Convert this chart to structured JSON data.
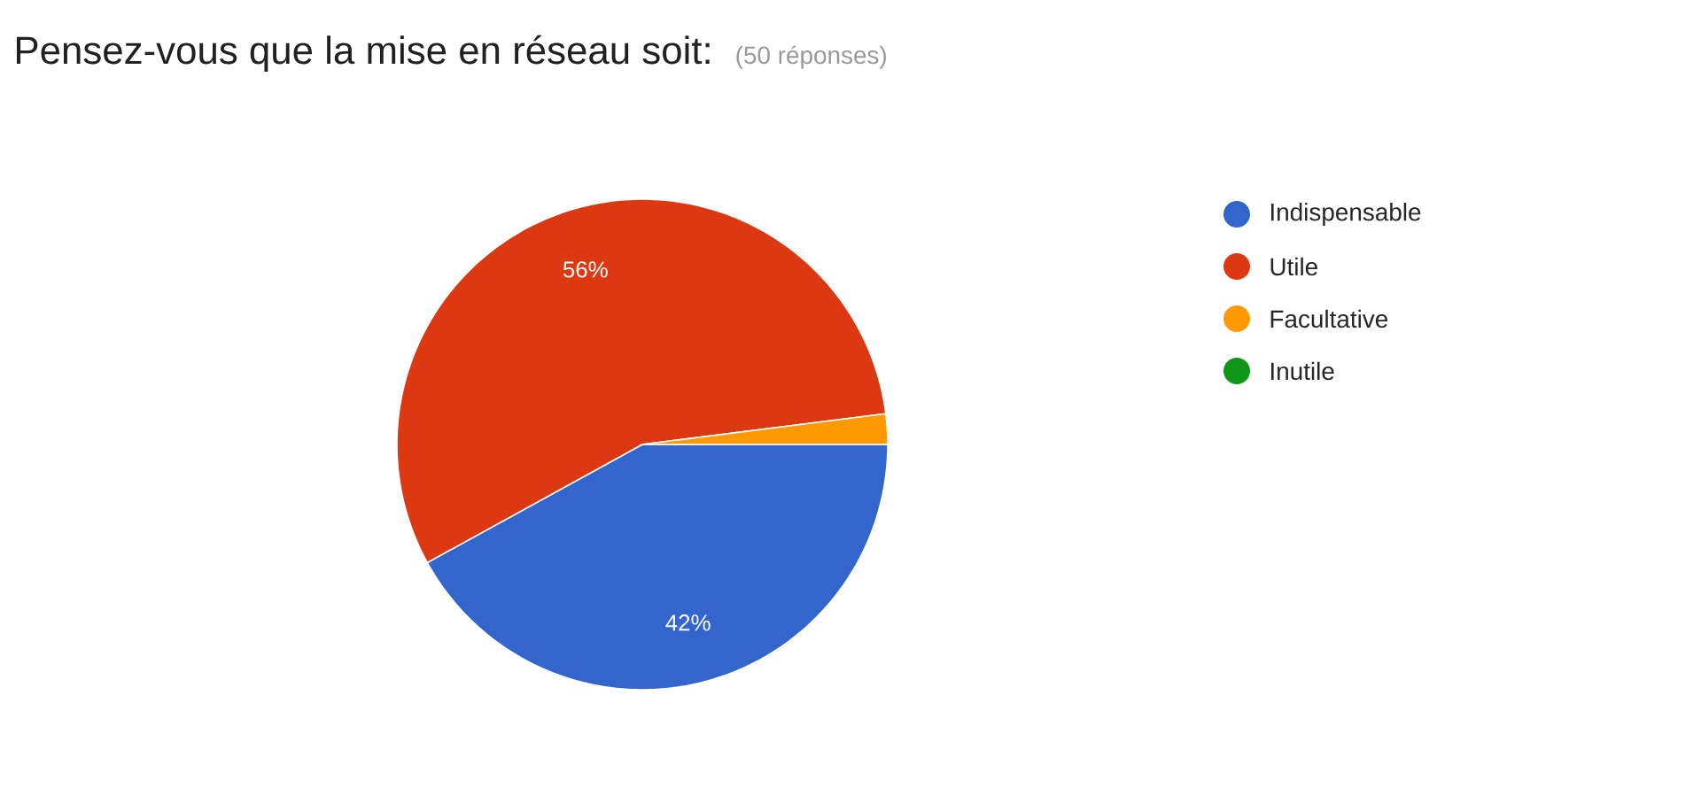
{
  "chart_data": {
    "type": "pie",
    "title": "Pensez-vous que la mise en réseau soit:",
    "subtitle": "(50 réponses)",
    "categories": [
      "Indispensable",
      "Utile",
      "Facultative",
      "Inutile"
    ],
    "values": [
      42,
      56,
      2,
      0
    ],
    "colors": [
      "#3366cc",
      "#dc3912",
      "#ff9900",
      "#109618"
    ],
    "value_labels": [
      "42%",
      "56%",
      null,
      null
    ],
    "legend": "right"
  }
}
